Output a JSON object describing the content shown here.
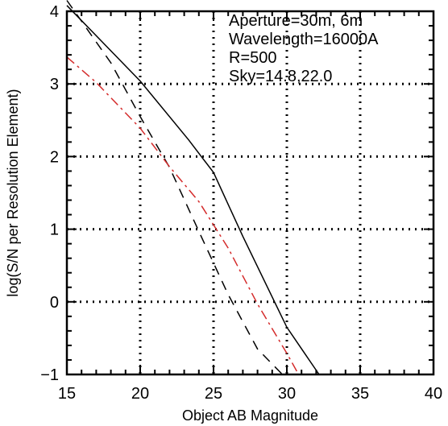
{
  "chart_data": {
    "type": "line",
    "xlabel": "Object AB Magnitude",
    "ylabel": "log(S/N per Resolution Element)",
    "xlim": [
      15,
      40
    ],
    "ylim": [
      -1,
      4
    ],
    "xticks": [
      15,
      20,
      25,
      30,
      35,
      40
    ],
    "yticks": [
      -1,
      0,
      1,
      2,
      3,
      4
    ],
    "grid": true,
    "annotations": [
      "Aperture=30m, 6m",
      "Wavelength=16000A",
      "R=500",
      "Sky=14.8,22.0"
    ],
    "series": [
      {
        "style": "solid",
        "color": "#000000",
        "x": [
          15.0,
          20.0,
          23.3,
          25.0,
          27.0,
          30.0,
          32.2
        ],
        "y": [
          4.08,
          3.04,
          2.23,
          1.78,
          0.9,
          -0.35,
          -1.0
        ]
      },
      {
        "style": "dashed",
        "color": "#000000",
        "x": [
          15.0,
          18.0,
          20.0,
          22.0,
          24.0,
          26.0,
          28.0,
          29.7
        ],
        "y": [
          4.15,
          3.29,
          2.55,
          1.85,
          0.97,
          0.1,
          -0.65,
          -1.0
        ]
      },
      {
        "style": "dashdot",
        "color": "#d42b2b",
        "x": [
          15.0,
          17.0,
          20.0,
          22.0,
          24.0,
          26.0,
          28.0,
          30.0,
          30.8
        ],
        "y": [
          3.37,
          3.02,
          2.39,
          1.86,
          1.38,
          0.74,
          -0.03,
          -0.71,
          -1.0
        ]
      }
    ]
  }
}
